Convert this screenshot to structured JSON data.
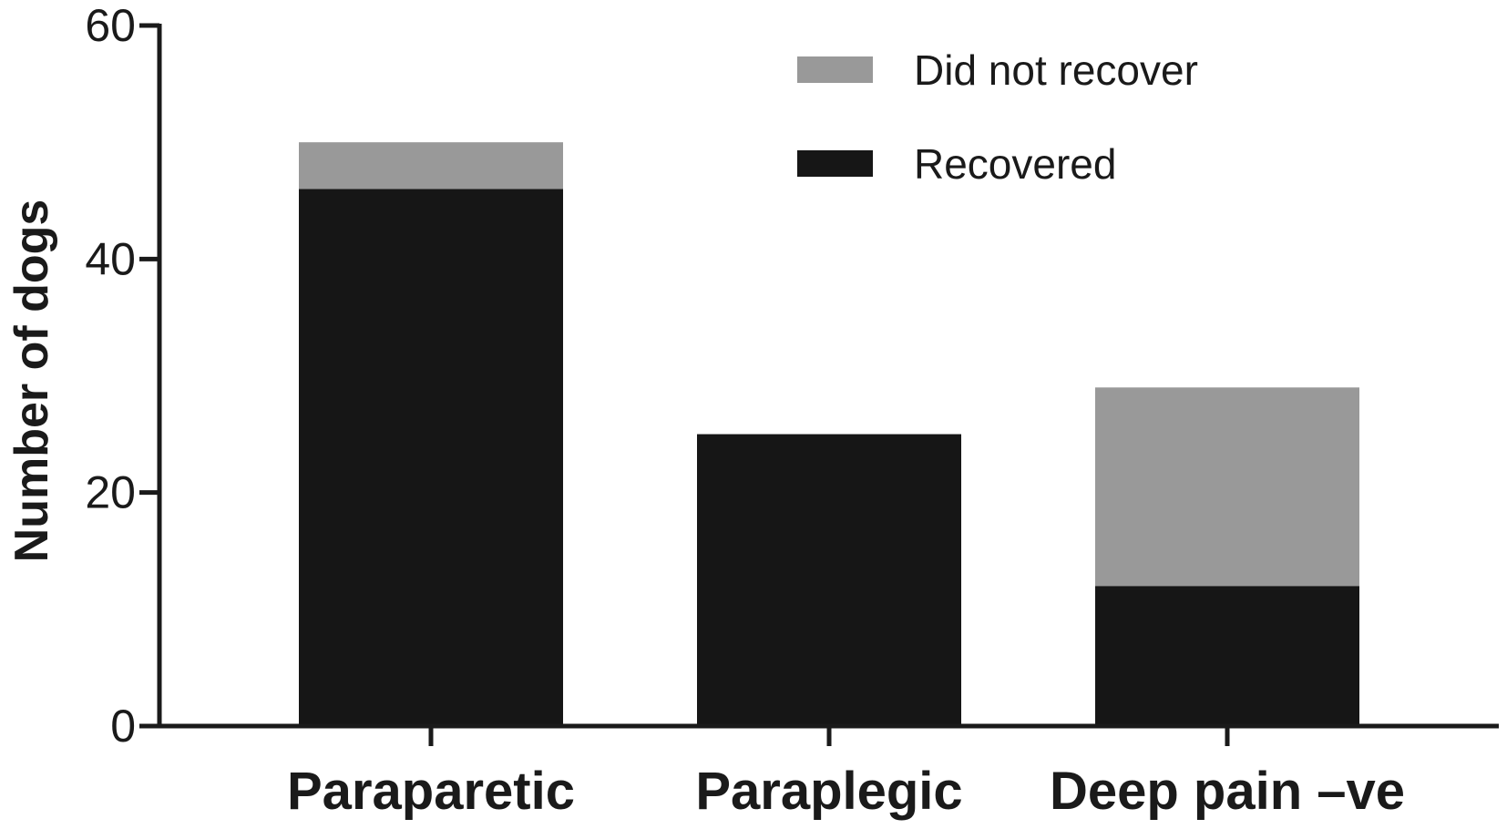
{
  "chart_data": {
    "type": "bar",
    "stacked": true,
    "title": "",
    "xlabel": "",
    "ylabel": "Number of dogs",
    "ylim": [
      0,
      60
    ],
    "yticks": [
      0,
      20,
      40,
      60
    ],
    "categories": [
      "Paraparetic",
      "Paraplegic",
      "Deep pain –ve"
    ],
    "series": [
      {
        "name": "Recovered",
        "values": [
          46,
          25,
          12
        ],
        "color": "#161616"
      },
      {
        "name": "Did not recover",
        "values": [
          4,
          0,
          17
        ],
        "color": "#999999"
      }
    ],
    "legend": {
      "position": "top-right",
      "order": [
        "Did not recover",
        "Recovered"
      ]
    },
    "grid": false
  }
}
